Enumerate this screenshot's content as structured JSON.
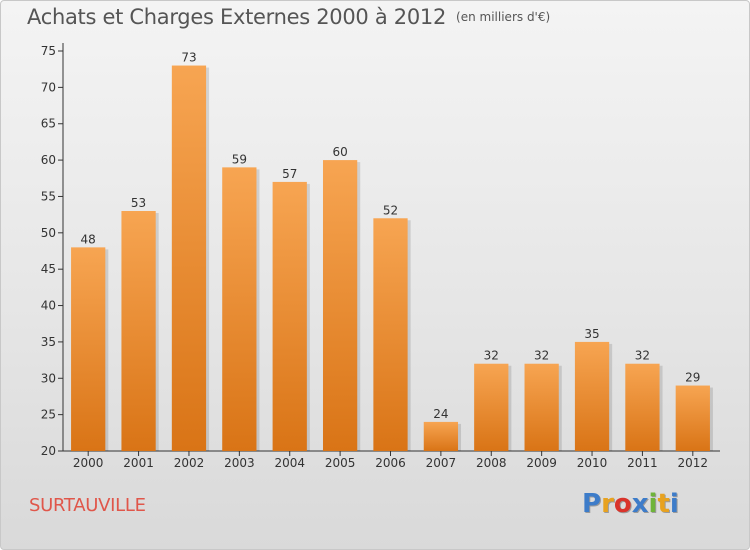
{
  "header": {
    "title": "Achats et Charges Externes 2000 à 2012",
    "subtitle": "(en milliers d'€)"
  },
  "footer": {
    "commune": "SURTAUVILLE",
    "logo_text": "Proxiti",
    "logo_colors": [
      "#3d7cc9",
      "#e8a21f",
      "#d9342b",
      "#3d7cc9",
      "#6fb43a",
      "#e8a21f",
      "#3d7cc9"
    ]
  },
  "colors": {
    "bar_top": "#f7a552",
    "bar_bottom": "#d97416",
    "commune": "#e0564a",
    "text": "#555555"
  },
  "chart_data": {
    "type": "bar",
    "title": "Achats et Charges Externes 2000 à 2012",
    "subtitle": "(en milliers d'€)",
    "xlabel": "",
    "ylabel": "",
    "categories": [
      "2000",
      "2001",
      "2002",
      "2003",
      "2004",
      "2005",
      "2006",
      "2007",
      "2008",
      "2009",
      "2010",
      "2011",
      "2012"
    ],
    "values": [
      48,
      53,
      73,
      59,
      57,
      60,
      52,
      24,
      32,
      32,
      35,
      32,
      29
    ],
    "ylim": [
      20,
      75
    ],
    "yticks": [
      20,
      25,
      30,
      35,
      40,
      45,
      50,
      55,
      60,
      65,
      70,
      75
    ],
    "grid": false,
    "data_labels": true
  }
}
